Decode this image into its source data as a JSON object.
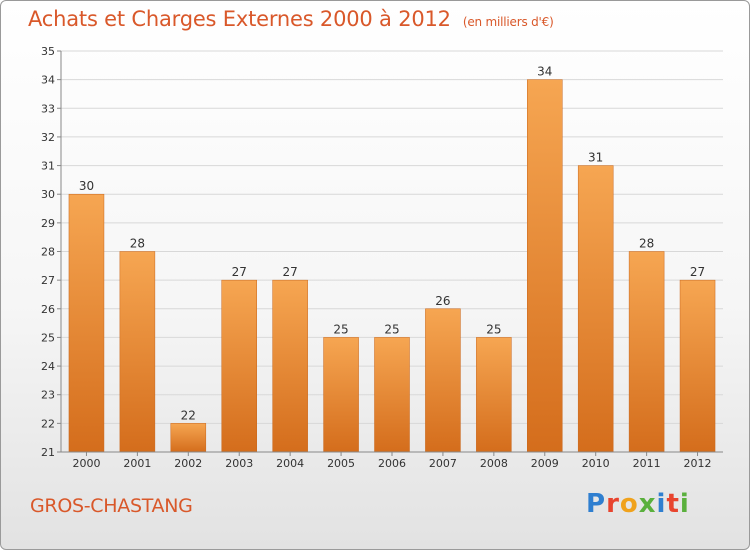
{
  "header": {
    "title": "Achats et Charges Externes 2000 à 2012",
    "unit": "(en milliers d'€)"
  },
  "footer": {
    "commune": "GROS-CHASTANG",
    "brand": "Proxiti"
  },
  "colors": {
    "title": "#d9582a",
    "bar_top": "#f6a652",
    "bar_bottom": "#d46d1c",
    "brand_letters": [
      "#2f7fd0",
      "#e8442e",
      "#f0a21c",
      "#5ab03d",
      "#2f7fd0",
      "#e8442e",
      "#5ab03d"
    ]
  },
  "chart_data": {
    "type": "bar",
    "categories": [
      "2000",
      "2001",
      "2002",
      "2003",
      "2004",
      "2005",
      "2006",
      "2007",
      "2008",
      "2009",
      "2010",
      "2011",
      "2012"
    ],
    "values": [
      30,
      28,
      22,
      27,
      27,
      25,
      25,
      26,
      25,
      34,
      31,
      28,
      27
    ],
    "title": "Achats et Charges Externes 2000 à 2012",
    "subtitle": "(en milliers d'€)",
    "xlabel": "",
    "ylabel": "",
    "ylim": [
      21,
      35
    ],
    "yticks": [
      21,
      22,
      23,
      24,
      25,
      26,
      27,
      28,
      29,
      30,
      31,
      32,
      33,
      34,
      35
    ],
    "grid": true,
    "data_labels": true
  }
}
